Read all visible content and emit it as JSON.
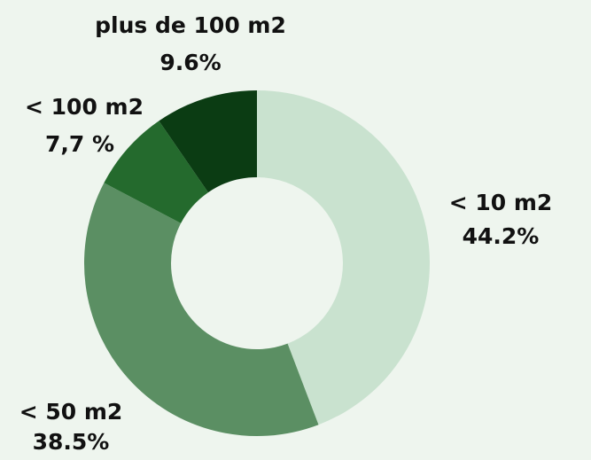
{
  "chart_data": {
    "type": "donut",
    "categories": [
      "< 10 m2",
      "< 50 m2",
      "< 100 m2",
      "plus de 100 m2"
    ],
    "values": [
      44.2,
      38.5,
      7.7,
      9.6
    ],
    "value_labels": [
      "44.2%",
      "38.5%",
      "7,7 %",
      "9.6%"
    ],
    "colors": [
      "#c9e2cf",
      "#5b8f63",
      "#246a2d",
      "#0b3c13"
    ]
  }
}
